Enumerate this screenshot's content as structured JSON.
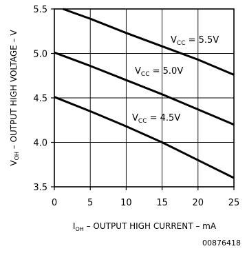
{
  "chart_data": {
    "type": "line",
    "xlabel_main": "I",
    "xlabel_sub": "OH",
    "xlabel_rest": " – OUTPUT HIGH CURRENT – mA",
    "ylabel_main": "V",
    "ylabel_sub": "OH",
    "ylabel_rest": " – OUTPUT HIGH VOLTAGE – V",
    "xlim": [
      0,
      25
    ],
    "ylim": [
      3.5,
      5.5
    ],
    "xticks": [
      "0",
      "5",
      "10",
      "15",
      "20",
      "25"
    ],
    "yticks": [
      "3.5",
      "4.0",
      "4.5",
      "5.0",
      "5.5"
    ],
    "grid": true,
    "series": [
      {
        "label_main": "V",
        "label_sub": "CC",
        "label_rest": " = 5.5V",
        "x": [
          1.2,
          5,
          10,
          15,
          20,
          25
        ],
        "y": [
          5.5,
          5.39,
          5.23,
          5.08,
          4.93,
          4.76
        ]
      },
      {
        "label_main": "V",
        "label_sub": "CC",
        "label_rest": " = 5.0V",
        "x": [
          0,
          5,
          10,
          15,
          20,
          25
        ],
        "y": [
          5.01,
          4.86,
          4.7,
          4.54,
          4.37,
          4.2
        ]
      },
      {
        "label_main": "V",
        "label_sub": "CC",
        "label_rest": " = 4.5V",
        "x": [
          0,
          5,
          10,
          15,
          20,
          25
        ],
        "y": [
          4.51,
          4.35,
          4.18,
          4.0,
          3.8,
          3.6
        ]
      }
    ],
    "footnote": "00876418"
  }
}
